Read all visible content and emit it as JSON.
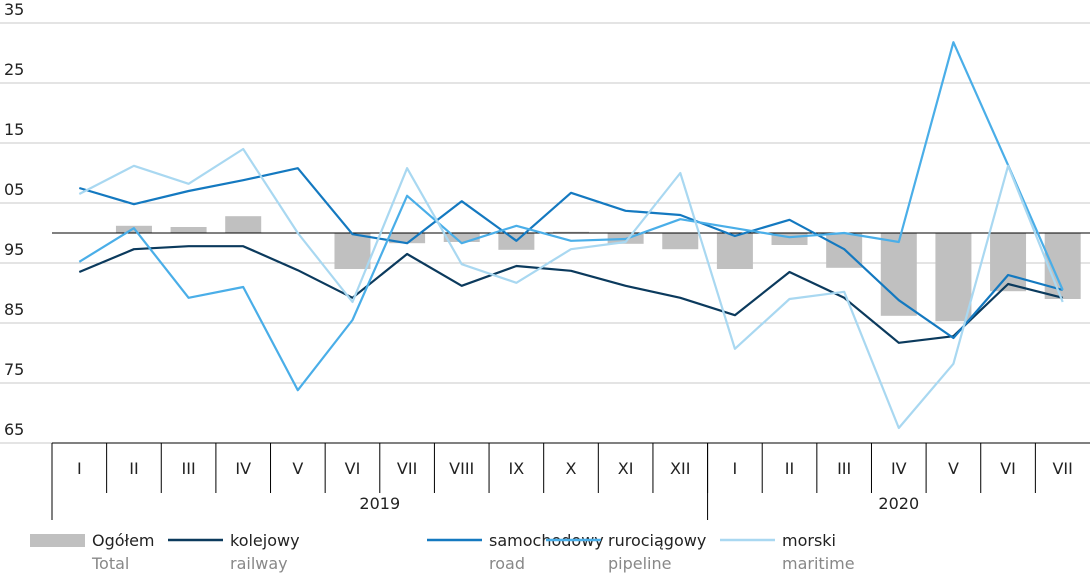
{
  "chart_data": {
    "type": "bar_line",
    "categories": [
      "I",
      "II",
      "III",
      "IV",
      "V",
      "VI",
      "VII",
      "VIII",
      "IX",
      "X",
      "XI",
      "XII",
      "I",
      "II",
      "III",
      "IV",
      "V",
      "VI",
      "VII"
    ],
    "groups": [
      {
        "label": "2019",
        "span": 12
      },
      {
        "label": "2020",
        "span": 7
      }
    ],
    "ylim": [
      65,
      135
    ],
    "yticks": [
      65,
      75,
      85,
      95,
      {
        "value": 105,
        "label": "05"
      },
      {
        "value": 115,
        "label": "15"
      },
      {
        "value": 125,
        "label": "25"
      },
      {
        "value": 135,
        "label": "35"
      }
    ],
    "bar_base": 100,
    "grid": true,
    "series": [
      {
        "name": "Ogółem",
        "name_en": "Total",
        "kind": "bar",
        "color": "#c0c0c0",
        "values": [
          100,
          101.2,
          101,
          102.8,
          100,
          94,
          98.3,
          98.5,
          97.2,
          100.2,
          98.2,
          97.3,
          94,
          98,
          94.2,
          86.2,
          85.3,
          90.3,
          89
        ]
      },
      {
        "name": "kolejowy",
        "name_en": "railway",
        "kind": "line",
        "color": "#0b3a5d",
        "values": [
          93.5,
          97.3,
          97.8,
          97.8,
          93.8,
          89.2,
          96.5,
          91.2,
          94.5,
          93.7,
          91.2,
          89.2,
          86.3,
          93.5,
          89.2,
          81.7,
          82.8,
          91.5,
          89.2
        ]
      },
      {
        "name": "samochodowy",
        "name_en": "road",
        "kind": "line",
        "color": "#1479c0",
        "values": [
          107.5,
          104.8,
          107,
          108.8,
          110.8,
          99.8,
          98.3,
          105.3,
          98.7,
          106.7,
          103.7,
          103,
          99.5,
          102.2,
          97.3,
          88.8,
          82.5,
          93,
          90.5
        ]
      },
      {
        "name": "rurociągowy",
        "name_en": "pipeline",
        "kind": "line",
        "color": "#4aaee8",
        "values": [
          95.2,
          100.8,
          89.2,
          91,
          73.8,
          85.5,
          106.2,
          98.3,
          101.2,
          98.7,
          99,
          102.3,
          100.8,
          99.3,
          100,
          98.5,
          131.8,
          111.3,
          90.5
        ]
      },
      {
        "name": "morski",
        "name_en": "maritime",
        "kind": "line",
        "color": "#a9d8f1",
        "values": [
          106.5,
          111.2,
          108.2,
          114,
          100,
          88.5,
          110.8,
          94.8,
          91.7,
          97.3,
          98.5,
          110,
          80.7,
          89,
          90.2,
          67.5,
          78.2,
          111.2,
          88.5
        ]
      }
    ]
  }
}
